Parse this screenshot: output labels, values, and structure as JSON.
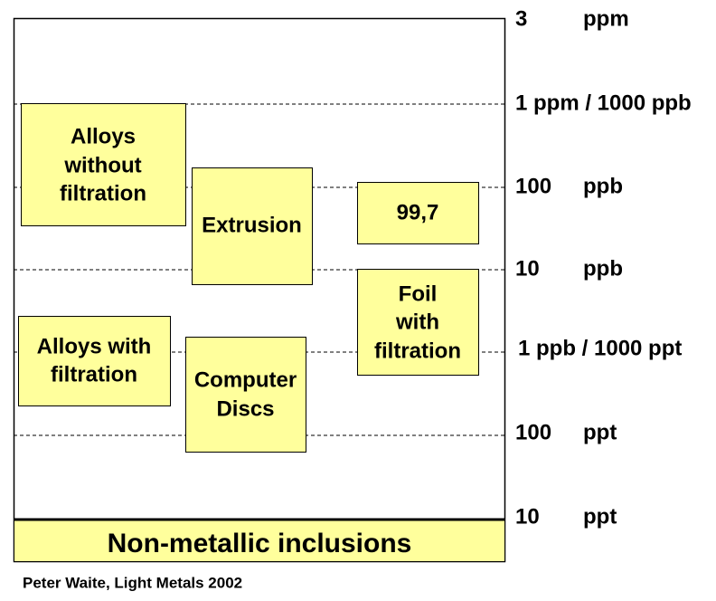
{
  "scale": [
    {
      "number": "3",
      "unit": "ppm"
    },
    {
      "label": "1 ppm / 1000 ppb"
    },
    {
      "number": "100",
      "unit": "ppb"
    },
    {
      "number": "10",
      "unit": "ppb"
    },
    {
      "label": "1 ppb / 1000 ppt"
    },
    {
      "number": "100",
      "unit": "ppt"
    },
    {
      "number": "10",
      "unit": "ppt"
    }
  ],
  "boxes": [
    {
      "lines": [
        "Alloys",
        "without",
        "filtration"
      ]
    },
    {
      "lines": [
        "Extrusion"
      ]
    },
    {
      "lines": [
        "99,7"
      ]
    },
    {
      "lines": [
        "Foil",
        "with",
        "filtration"
      ]
    },
    {
      "lines": [
        "Alloys with",
        "filtration"
      ]
    },
    {
      "lines": [
        "Computer",
        "Discs"
      ]
    }
  ],
  "footer": "Non-metallic inclusions",
  "source": "Peter Waite, Light Metals  2002"
}
